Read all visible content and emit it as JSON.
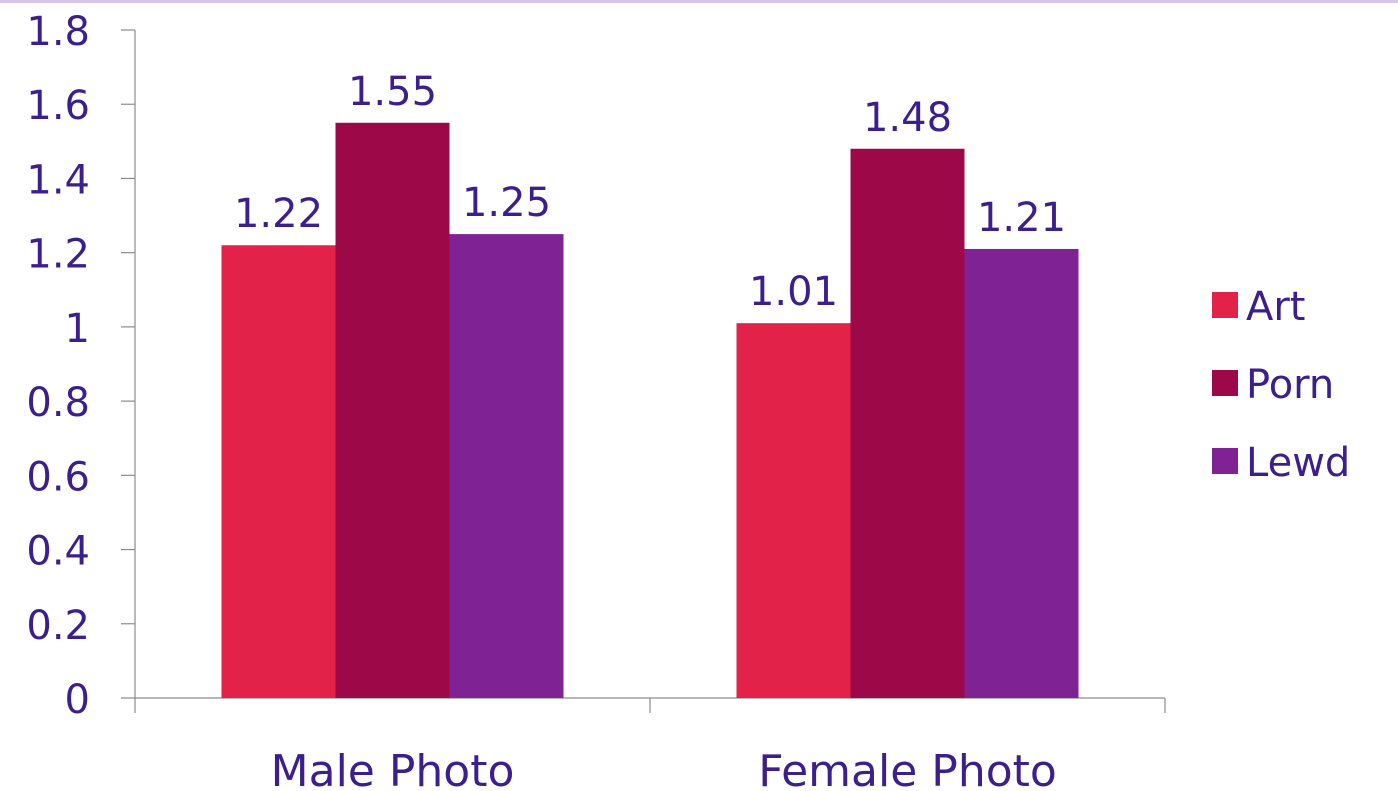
{
  "chart_data": {
    "type": "bar",
    "categories": [
      "Male Photo",
      "Female Photo"
    ],
    "series": [
      {
        "name": "Art",
        "values": [
          1.22,
          1.01
        ],
        "color": "#e3224a"
      },
      {
        "name": "Porn",
        "values": [
          1.55,
          1.48
        ],
        "color": "#9c0848"
      },
      {
        "name": "Lewd",
        "values": [
          1.25,
          1.21
        ],
        "color": "#7f2394"
      }
    ],
    "data_labels": [
      [
        "1.22",
        "1.01"
      ],
      [
        "1.55",
        "1.48"
      ],
      [
        "1.25",
        "1.21"
      ]
    ],
    "y_ticks": [
      "0",
      "0.2",
      "0.4",
      "0.6",
      "0.8",
      "1",
      "1.2",
      "1.4",
      "1.6",
      "1.8"
    ],
    "ylim": [
      0,
      1.8
    ],
    "grid": false,
    "legend_position": "right",
    "text_color": "#3b1f8c",
    "axis_color": "#8c8c8c"
  }
}
